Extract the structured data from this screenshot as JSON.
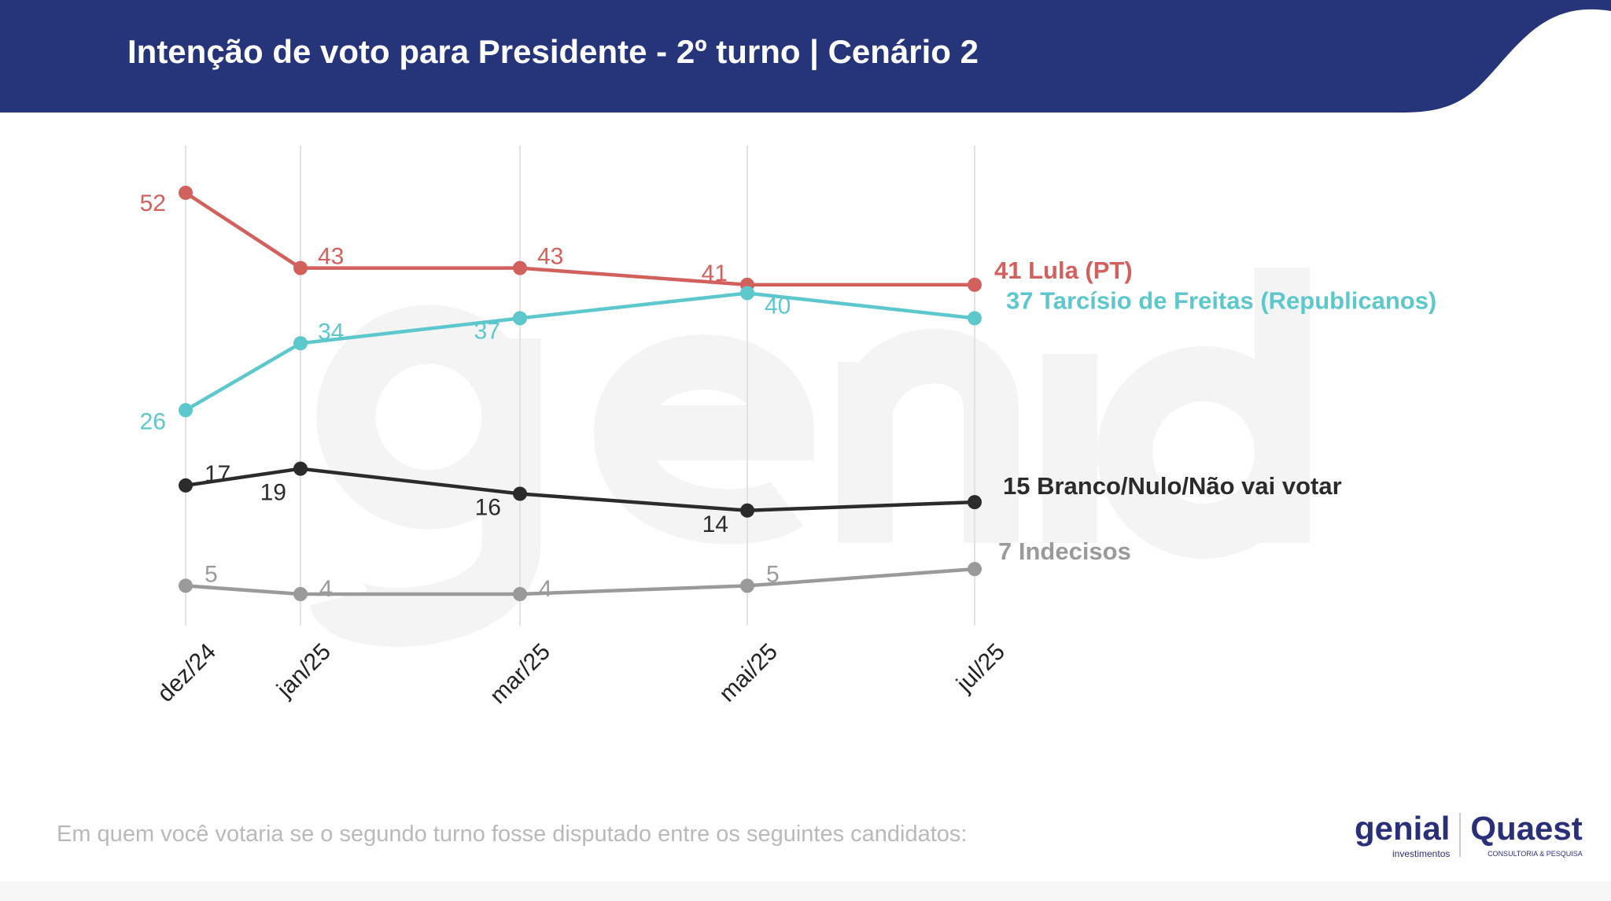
{
  "header": {
    "title": "Intenção de voto para Presidente - 2º turno | Cenário 2"
  },
  "footer": {
    "question": "Em quem você votaria se o segundo turno fosse disputado entre os seguintes candidatos:"
  },
  "logos": {
    "genial": "genial",
    "genial_sub": "investimentos",
    "quaest": "Quaest",
    "quaest_sub": "CONSULTORIA & PESQUISA"
  },
  "watermark": {
    "line1": "genial",
    "line2": "investimentos"
  },
  "colors": {
    "header": "#26347a",
    "lula": "#d2605c",
    "tarcisio": "#5cc8cc",
    "branco": "#2b2b2b",
    "indecisos": "#9a9a9a"
  },
  "chart_data": {
    "type": "line",
    "categories": [
      "dez/24",
      "jan/25",
      "mar/25",
      "mai/25",
      "jul/25"
    ],
    "ylim": [
      0,
      56
    ],
    "series": [
      {
        "name": "Lula (PT)",
        "end_label": "41 Lula (PT)",
        "color": "#d2605c",
        "values": [
          52,
          43,
          43,
          41,
          41
        ]
      },
      {
        "name": "Tarcísio de Freitas (Republicanos)",
        "end_label": "37 Tarcísio de Freitas (Republicanos)",
        "color": "#5cc8cc",
        "values": [
          26,
          34,
          37,
          40,
          37
        ]
      },
      {
        "name": "Branco/Nulo/Não vai votar",
        "end_label": "15 Branco/Nulo/Não vai votar",
        "color": "#2b2b2b",
        "values": [
          17,
          19,
          16,
          14,
          15
        ]
      },
      {
        "name": "Indecisos",
        "end_label": "7 Indecisos",
        "color": "#9a9a9a",
        "values": [
          5,
          4,
          4,
          5,
          7
        ]
      }
    ]
  }
}
